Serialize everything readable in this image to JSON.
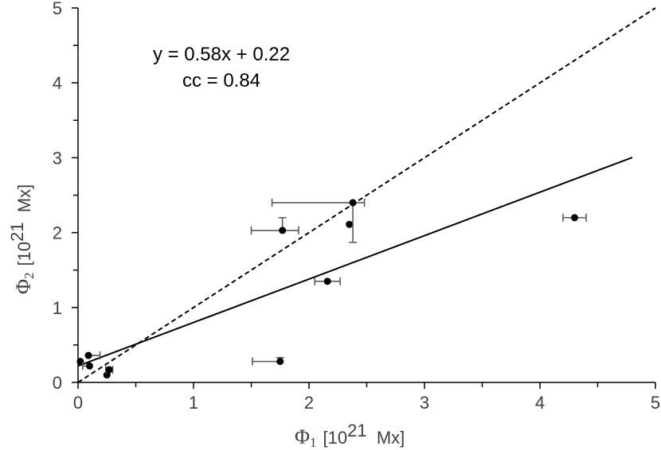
{
  "chart_data": {
    "type": "scatter",
    "x_axis": {
      "label_symbol": "Φ",
      "label_subscript": "1",
      "label_unit": "[10",
      "label_exponent": "21",
      "label_tail": "  Mx]",
      "lim": [
        0,
        5
      ],
      "major_ticks": [
        0,
        1,
        2,
        3,
        4,
        5
      ],
      "minor_step": 0.5,
      "tick_labels": [
        "0",
        "1",
        "2",
        "3",
        "4",
        "5"
      ]
    },
    "y_axis": {
      "label_symbol": "Φ",
      "label_subscript": "2",
      "label_unit": "[10",
      "label_exponent": "21",
      "label_tail": "  Mx]",
      "lim": [
        0,
        5
      ],
      "major_ticks": [
        0,
        1,
        2,
        3,
        4,
        5
      ],
      "minor_step": 0.5,
      "tick_labels": [
        "0",
        "1",
        "2",
        "3",
        "4",
        "5"
      ]
    },
    "annotations": {
      "fit_equation": "y = 0.58x + 0.22",
      "correlation": "cc = 0.84"
    },
    "fit_line": {
      "slope": 0.58,
      "intercept": 0.22,
      "x_range": [
        0,
        4.8
      ],
      "style": "solid"
    },
    "reference_line": {
      "slope": 1,
      "intercept": 0,
      "x_range": [
        0,
        5
      ],
      "style": "dashed"
    },
    "grid": false,
    "points": [
      {
        "x": 0.02,
        "y": 0.28,
        "xerr": [
          0.0,
          0.0
        ],
        "yerr": [
          0.0,
          0.0
        ]
      },
      {
        "x": 0.09,
        "y": 0.36,
        "xerr": [
          0.0,
          0.1
        ],
        "yerr": [
          0.0,
          0.0
        ]
      },
      {
        "x": 0.1,
        "y": 0.22,
        "xerr": [
          0.06,
          0.0
        ],
        "yerr": [
          0.0,
          0.0
        ]
      },
      {
        "x": 0.25,
        "y": 0.1,
        "xerr": [
          0.0,
          0.0
        ],
        "yerr": [
          0.0,
          0.0
        ]
      },
      {
        "x": 0.27,
        "y": 0.17,
        "xerr": [
          0.03,
          0.03
        ],
        "yerr": [
          0.0,
          0.0
        ]
      },
      {
        "x": 1.75,
        "y": 0.28,
        "xerr": [
          0.24,
          0.0
        ],
        "yerr": [
          0.0,
          0.05
        ]
      },
      {
        "x": 1.77,
        "y": 2.03,
        "xerr": [
          0.27,
          0.14
        ],
        "yerr": [
          0.0,
          0.17
        ]
      },
      {
        "x": 2.16,
        "y": 1.35,
        "xerr": [
          0.11,
          0.11
        ],
        "yerr": [
          0.0,
          0.0
        ]
      },
      {
        "x": 2.35,
        "y": 2.11,
        "xerr": [
          0.0,
          0.0
        ],
        "yerr": [
          0.0,
          0.0
        ]
      },
      {
        "x": 2.38,
        "y": 2.4,
        "xerr": [
          0.7,
          0.1
        ],
        "yerr": [
          0.53,
          0.0
        ]
      },
      {
        "x": 4.3,
        "y": 2.2,
        "xerr": [
          0.1,
          0.1
        ],
        "yerr": [
          0.0,
          0.0
        ]
      }
    ]
  }
}
